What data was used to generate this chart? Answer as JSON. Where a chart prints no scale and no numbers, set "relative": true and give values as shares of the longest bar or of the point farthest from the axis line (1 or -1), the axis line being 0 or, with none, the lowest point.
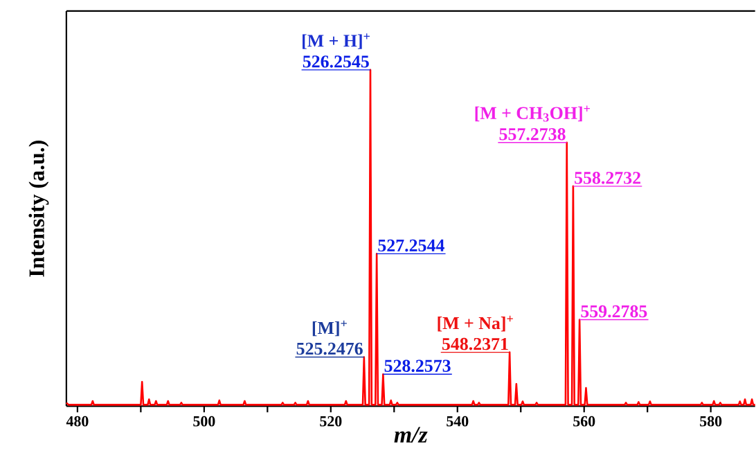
{
  "chart_data": {
    "type": "line",
    "relative": true,
    "xlabel": "m/z",
    "ylabel": "Intensity (a.u.)",
    "xlim": [
      478.25,
      587
    ],
    "xticks": [
      480,
      {
        "value": 490,
        "label": null
      },
      500,
      {
        "value": 510,
        "label": null
      },
      520,
      {
        "value": 530,
        "label": null
      },
      540,
      {
        "value": 550,
        "label": null
      },
      560,
      {
        "value": 570,
        "label": null
      },
      580
    ],
    "series": [
      {
        "color": "#ff0000",
        "x": [
          478.25,
          478.6,
          482.2,
          482.4,
          482.6,
          490.0,
          490.2,
          490.4,
          491.1,
          491.3,
          491.5,
          492.2,
          492.4,
          492.6,
          494.1,
          494.3,
          494.5,
          496.2,
          496.4,
          496.6,
          502.2,
          502.4,
          502.6,
          506.2,
          506.4,
          506.6,
          512.2,
          512.4,
          512.6,
          514.2,
          514.4,
          514.6,
          516.2,
          516.4,
          516.6,
          522.2,
          522.4,
          522.6,
          525.05,
          525.25,
          525.45,
          526.05,
          526.25,
          526.45,
          527.05,
          527.25,
          527.45,
          528.06,
          528.26,
          528.46,
          529.3,
          529.5,
          529.7,
          530.3,
          530.5,
          530.7,
          542.3,
          542.5,
          542.7,
          543.2,
          543.4,
          543.6,
          548.04,
          548.24,
          548.44,
          549.1,
          549.3,
          549.5,
          550.1,
          550.3,
          550.5,
          552.3,
          552.5,
          552.7,
          557.07,
          557.27,
          557.47,
          558.07,
          558.27,
          558.47,
          559.08,
          559.28,
          559.48,
          560.1,
          560.3,
          560.5,
          566.4,
          566.6,
          566.8,
          568.4,
          568.6,
          568.8,
          570.2,
          570.4,
          570.6,
          578.4,
          578.6,
          578.8,
          580.3,
          580.5,
          580.7,
          581.3,
          581.5,
          581.7,
          584.4,
          584.6,
          584.8,
          585.2,
          585.4,
          585.6,
          586.3,
          586.5,
          586.7,
          587
        ],
        "values": [
          0.01,
          0.004,
          0.004,
          0.015,
          0.004,
          0.004,
          0.072,
          0.004,
          0.004,
          0.02,
          0.004,
          0.004,
          0.015,
          0.004,
          0.004,
          0.015,
          0.004,
          0.004,
          0.01,
          0.004,
          0.004,
          0.017,
          0.004,
          0.004,
          0.015,
          0.004,
          0.004,
          0.01,
          0.004,
          0.004,
          0.01,
          0.004,
          0.004,
          0.015,
          0.004,
          0.004,
          0.015,
          0.004,
          0.004,
          0.146,
          0.004,
          0.004,
          1,
          0.004,
          0.004,
          0.453,
          0.004,
          0.004,
          0.095,
          0.004,
          0.004,
          0.017,
          0.004,
          0.004,
          0.01,
          0.004,
          0.004,
          0.015,
          0.004,
          0.004,
          0.01,
          0.004,
          0.004,
          0.16,
          0.004,
          0.004,
          0.066,
          0.004,
          0.004,
          0.014,
          0.004,
          0.004,
          0.01,
          0.004,
          0.004,
          0.784,
          0.004,
          0.004,
          0.654,
          0.004,
          0.004,
          0.257,
          0.004,
          0.004,
          0.054,
          0.004,
          0.004,
          0.01,
          0.004,
          0.004,
          0.012,
          0.004,
          0.004,
          0.014,
          0.004,
          0.004,
          0.01,
          0.004,
          0.004,
          0.015,
          0.004,
          0.004,
          0.01,
          0.004,
          0.004,
          0.014,
          0.004,
          0.004,
          0.02,
          0.004,
          0.004,
          0.02,
          0.004,
          0.004
        ]
      }
    ],
    "annotations": [
      "[M + H]$^{+}$",
      {
        "text": "526.2545",
        "x": 526.25,
        "y": 1
      },
      {
        "text": "527.2544",
        "x": 527.25,
        "y": 0.453
      },
      {
        "text": "528.2573",
        "x": 528.26,
        "y": 0.095
      },
      "[M]$^{+}$",
      {
        "text": "525.2476",
        "x": 525.25,
        "y": 0.146
      },
      "[M + Na]$^{+}$",
      {
        "text": "548.2371",
        "x": 548.24,
        "y": 0.16
      },
      "[M + CH$_{3}$OH]$^{+}$",
      {
        "text": "557.2738",
        "x": 557.27,
        "y": 0.784
      },
      {
        "text": "558.2732",
        "x": 558.27,
        "y": 0.654
      },
      {
        "text": "559.2785",
        "x": 559.28,
        "y": 0.257
      }
    ]
  }
}
